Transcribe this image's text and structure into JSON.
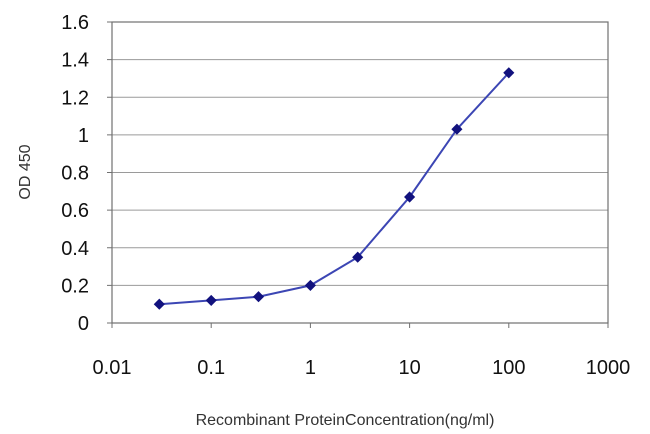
{
  "chart_data": {
    "type": "line",
    "xscale": "log",
    "x": [
      0.03,
      0.1,
      0.3,
      1,
      3,
      10,
      30,
      100
    ],
    "series": [
      {
        "values": [
          0.1,
          0.12,
          0.14,
          0.2,
          0.35,
          0.67,
          1.03,
          1.33
        ]
      }
    ],
    "xlabel": "Recombinant ProteinConcentration(ng/ml)",
    "ylabel": "OD 450",
    "xlim": [
      0.01,
      1000
    ],
    "ylim": [
      0,
      1.6
    ],
    "xticks": [
      "0.01",
      "0.1",
      "1",
      "10",
      "100",
      "1000"
    ],
    "yticks": [
      "0",
      "0.2",
      "0.4",
      "0.6",
      "0.8",
      "1",
      "1.2",
      "1.4",
      "1.6"
    ],
    "grid": true,
    "legend": false,
    "colors": {
      "line": "#3c46b4",
      "marker": "#12127e",
      "grid": "#9a9a9a",
      "frame": "#707070"
    }
  }
}
